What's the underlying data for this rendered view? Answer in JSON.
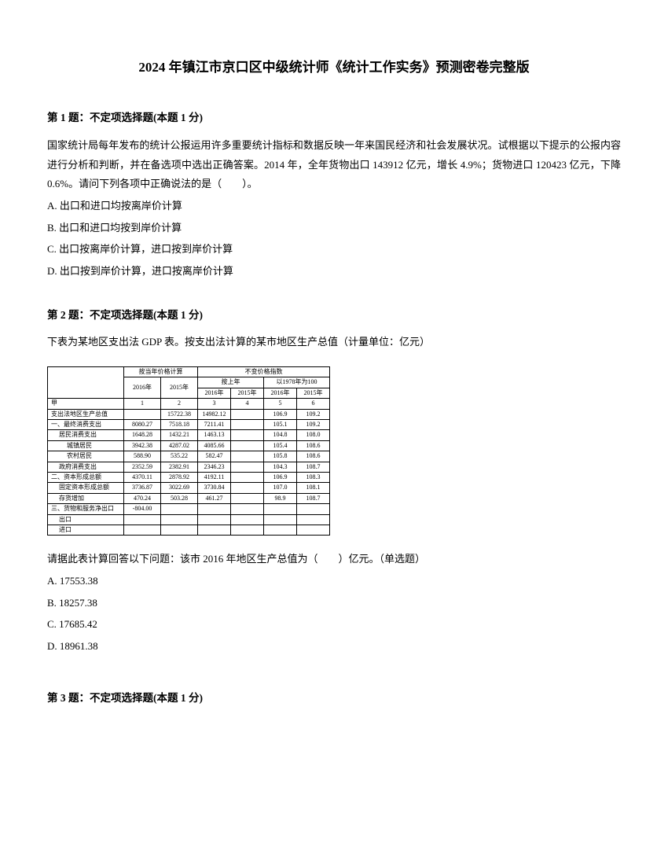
{
  "title": "2024 年镇江市京口区中级统计师《统计工作实务》预测密卷完整版",
  "q1": {
    "header": "第 1 题：不定项选择题(本题 1 分)",
    "body": "国家统计局每年发布的统计公报运用许多重要统计指标和数据反映一年来国民经济和社会发展状况。试根据以下提示的公报内容进行分析和判断，并在备选项中选出正确答案。2014 年，全年货物出口 143912 亿元，增长 4.9%；货物进口 120423 亿元，下降 0.6%。请问下列各项中正确说法的是（　　）。",
    "optA": "A. 出口和进口均按离岸价计算",
    "optB": "B. 出口和进口均按到岸价计算",
    "optC": "C. 出口按离岸价计算，进口按到岸价计算",
    "optD": "D. 出口按到岸价计算，进口按离岸价计算"
  },
  "q2": {
    "header": "第 2 题：不定项选择题(本题 1 分)",
    "intro": "下表为某地区支出法 GDP 表。按支出法计算的某市地区生产总值（计量单位：亿元）",
    "question": "请据此表计算回答以下问题：该市 2016 年地区生产总值为（　　）亿元。（单选题）",
    "optA": "A. 17553.38",
    "optB": "B. 18257.38",
    "optC": "C. 17685.42",
    "optD": "D. 18961.38",
    "table": {
      "group_header_left": "按当年价格计算",
      "group_header_right": "不变价格指数",
      "sub_left": "按上年",
      "sub_right": "以1978年为100",
      "years": [
        "2016年",
        "2015年",
        "2016年",
        "2015年",
        "2016年",
        "2015年"
      ],
      "row_nums_label": "甲",
      "row_nums": [
        "1",
        "2",
        "3",
        "4",
        "5",
        "6"
      ],
      "rows": [
        {
          "label": "支出法地区生产总值",
          "v": [
            "",
            "15722.38",
            "14982.12",
            "",
            "106.9",
            "109.2"
          ]
        },
        {
          "label": "一、最终消费支出",
          "v": [
            "8080.27",
            "7518.18",
            "7211.41",
            "",
            "105.1",
            "109.2"
          ],
          "cls": "row-label"
        },
        {
          "label": "居民消费支出",
          "v": [
            "1648.28",
            "1432.21",
            "1463.13",
            "",
            "104.8",
            "108.0"
          ],
          "cls": "indent1"
        },
        {
          "label": "城镇居民",
          "v": [
            "3942.38",
            "4287.02",
            "4085.66",
            "",
            "105.4",
            "108.6"
          ],
          "cls": "indent2"
        },
        {
          "label": "农村居民",
          "v": [
            "588.90",
            "535.22",
            "582.47",
            "",
            "105.8",
            "108.6"
          ],
          "cls": "indent2"
        },
        {
          "label": "政府消费支出",
          "v": [
            "2352.59",
            "2382.91",
            "2346.23",
            "",
            "104.3",
            "108.7"
          ],
          "cls": "indent1"
        },
        {
          "label": "二、资本形成总额",
          "v": [
            "4370.11",
            "2878.92",
            "4192.11",
            "",
            "106.9",
            "108.3"
          ],
          "cls": "row-label"
        },
        {
          "label": "固定资本形成总额",
          "v": [
            "3736.87",
            "3022.69",
            "3730.84",
            "",
            "107.0",
            "108.1"
          ],
          "cls": "indent1"
        },
        {
          "label": "存货增加",
          "v": [
            "470.24",
            "503.28",
            "461.27",
            "",
            "98.9",
            "108.7"
          ],
          "cls": "indent1"
        },
        {
          "label": "三、货物和服务净出口",
          "v": [
            "-804.00",
            "",
            "",
            "",
            "",
            ""
          ],
          "cls": "row-label"
        },
        {
          "label": "出口",
          "v": [
            "",
            "",
            "",
            "",
            "",
            ""
          ],
          "cls": "indent1"
        },
        {
          "label": "进口",
          "v": [
            "",
            "",
            "",
            "",
            "",
            ""
          ],
          "cls": "indent1"
        }
      ]
    }
  },
  "q3": {
    "header": "第 3 题：不定项选择题(本题 1 分)"
  }
}
